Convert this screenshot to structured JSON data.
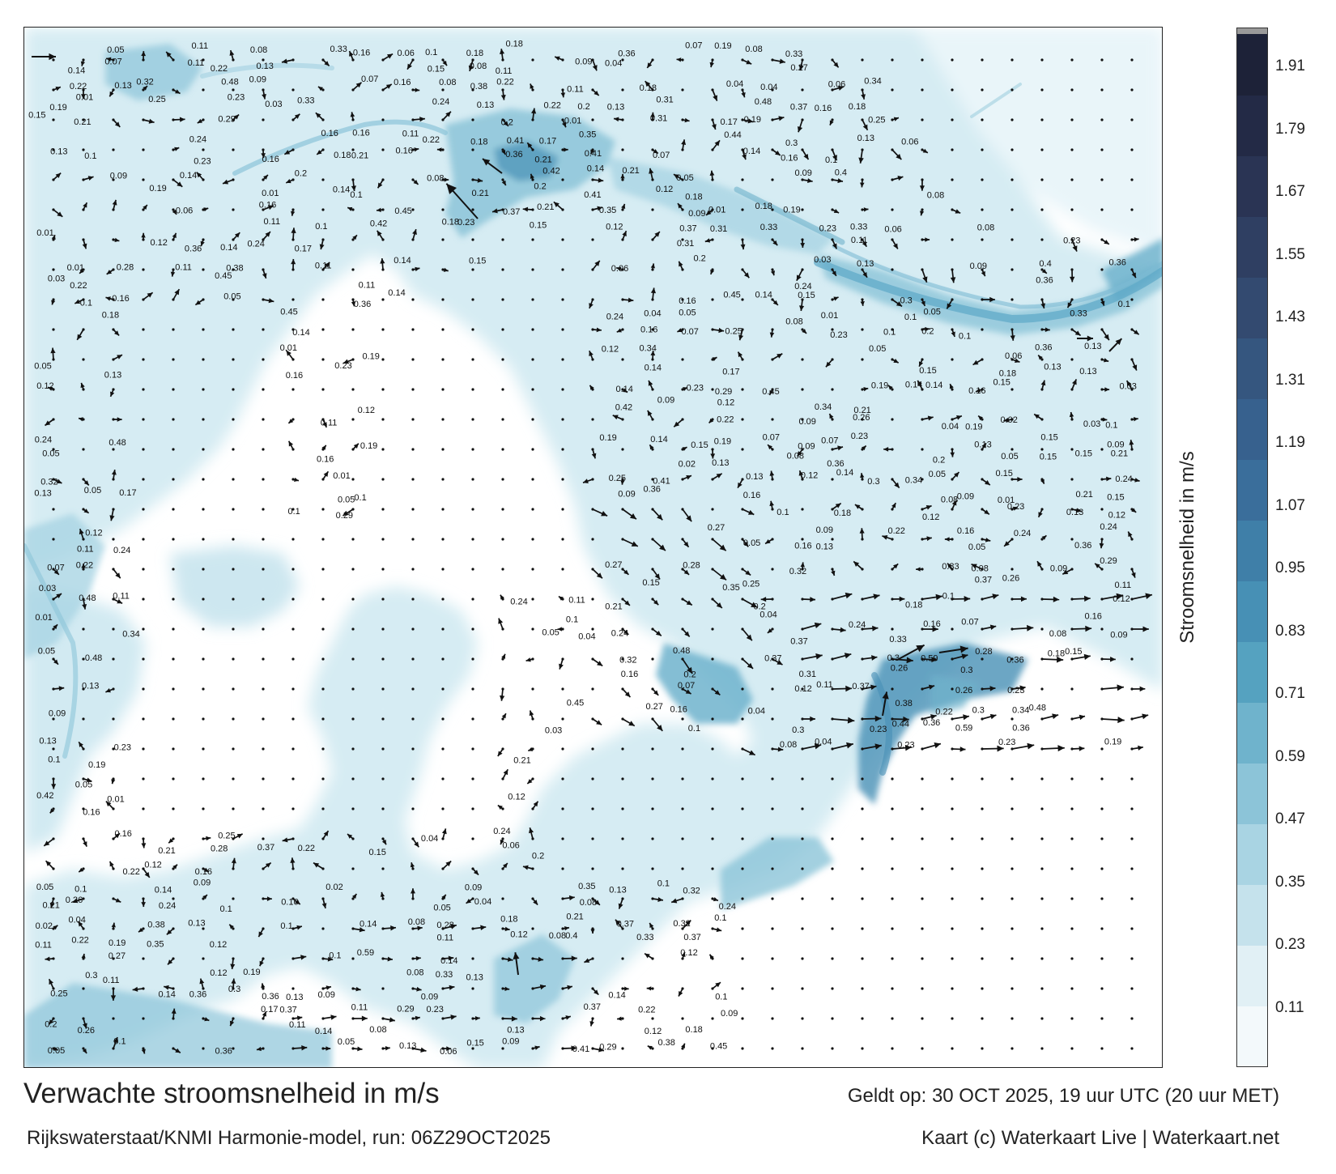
{
  "map": {
    "title": "Verwachte stroomsnelheid in m/s",
    "model_run": "Rijkswaterstaat/KNMI Harmonie-model, run: 06Z29OCT2025",
    "valid_time": "Geldt op: 30 OCT 2025, 19 uur UTC (20 uur MET)",
    "credits": "Kaart (c) Waterkaart Live | Waterkaart.net",
    "colors": {
      "land": "#ffffff",
      "arrow": "#111111",
      "frame": "#222222"
    }
  },
  "colorbar": {
    "title": "Stroomsnelheid in m/s",
    "ticks": [
      "0.11",
      "0.23",
      "0.35",
      "0.47",
      "0.59",
      "0.71",
      "0.83",
      "0.95",
      "1.07",
      "1.19",
      "1.31",
      "1.43",
      "1.55",
      "1.67",
      "1.79",
      "1.91"
    ],
    "colors": [
      "#f3f9fb",
      "#e1f0f5",
      "#c5e2ec",
      "#a9d4e3",
      "#8cc4d8",
      "#6fb3cc",
      "#55a2c0",
      "#4790b5",
      "#3f7fa8",
      "#3a6e9b",
      "#37618e",
      "#35567f",
      "#334a70",
      "#2f3f62",
      "#2a3454",
      "#232a46",
      "#1d2238"
    ]
  },
  "speed_labels": [
    "0.13",
    "0.12",
    "0.09",
    "0.11",
    "0.08",
    "0.1",
    "0.16",
    "0.14",
    "0.07",
    "0.11",
    "0.1",
    "0.13",
    "0.05",
    "0.06",
    "0.11",
    "0.09",
    "0.12",
    "0.08",
    "0.05",
    "0.15",
    "0.13",
    "0.14",
    "0.2",
    "0.21",
    "0.19",
    "0.16",
    "0.18",
    "0.15",
    "0.17",
    "0.25",
    "0.31",
    "0.35",
    "0.32",
    "0.36",
    "0.34",
    "0.41",
    "0.33",
    "0.42",
    "0.4",
    "0.21",
    "0.24",
    "0.22",
    "0.27",
    "0.29",
    "0.16",
    "0.19",
    "0.13",
    "0.14",
    "0.15",
    "0.11",
    "0.16",
    "0.17",
    "0.1",
    "0.09",
    "0.06",
    "0.03",
    "0.02",
    "0.04",
    "0.01",
    "0.22",
    "0.23",
    "0.26",
    "0.24",
    "0.28",
    "0.3",
    "0.37",
    "0.44",
    "0.59",
    "0.36",
    "0.48",
    "0.45",
    "0.38",
    "0.34",
    "0.18",
    "0.12",
    "0.08",
    "0.07",
    "0.05"
  ]
}
